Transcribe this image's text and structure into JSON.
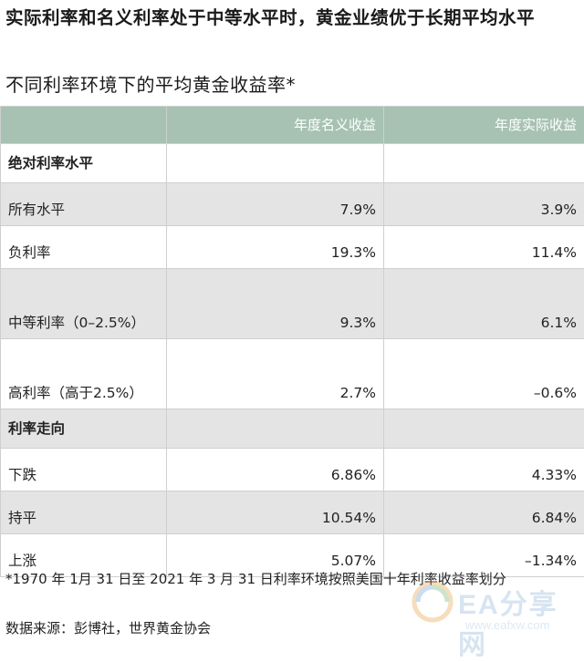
{
  "title": "实际利率和名义利率处于中等水平时，黄金业绩优于长期平均水平",
  "subtitle": "不同利率环境下的平均黄金收益率*",
  "table": {
    "headers": [
      "",
      "年度名义收益",
      "年度实际收益"
    ],
    "sections": [
      {
        "label": "绝对利率水平",
        "rows": [
          {
            "label": "所有水平",
            "nominal": "7.9%",
            "real": "3.9%"
          },
          {
            "label": "负利率",
            "nominal": "19.3%",
            "real": "11.4%"
          },
          {
            "label": "中等利率（0–2.5%）",
            "nominal": "9.3%",
            "real": "6.1%"
          },
          {
            "label": "高利率（高于2.5%）",
            "nominal": "2.7%",
            "real": "–0.6%"
          }
        ]
      },
      {
        "label": "利率走向",
        "rows": [
          {
            "label": "下跌",
            "nominal": "6.86%",
            "real": "4.33%"
          },
          {
            "label": "持平",
            "nominal": "10.54%",
            "real": "6.84%"
          },
          {
            "label": "上涨",
            "nominal": "5.07%",
            "real": "–1.34%"
          }
        ]
      }
    ]
  },
  "footnote": "*1970 年 1月 31 日至 2021 年 3 月 31 日利率环境按照美国十年利率收益率划分",
  "source": "数据来源：彭博社，世界黄金协会",
  "watermark": {
    "text": "EA分享网",
    "url": "www.eafxw.com"
  }
}
